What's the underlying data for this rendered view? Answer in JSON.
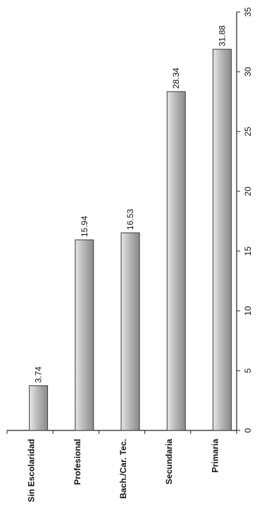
{
  "chart_data": {
    "type": "bar",
    "orientation": "vertical",
    "categories": [
      "Sin Escolaridad",
      "Profesional",
      "Bach./Car. Tec.",
      "Secundaria",
      "Primaria"
    ],
    "values": [
      3.74,
      15.94,
      16.53,
      28.34,
      31.88
    ],
    "data_labels": [
      "3.74",
      "15.94",
      "16.53",
      "28.34",
      "31.88"
    ],
    "y_ticks": [
      0,
      5,
      10,
      15,
      20,
      25,
      30,
      35
    ],
    "ylim": [
      0,
      35
    ],
    "grid": false,
    "legend": "none",
    "colors": {
      "bar_fill_light": "#dcdcdc",
      "bar_fill_dark": "#8a8a8a",
      "bar_stroke": "#3a3a3a",
      "axis": "#222222"
    }
  }
}
